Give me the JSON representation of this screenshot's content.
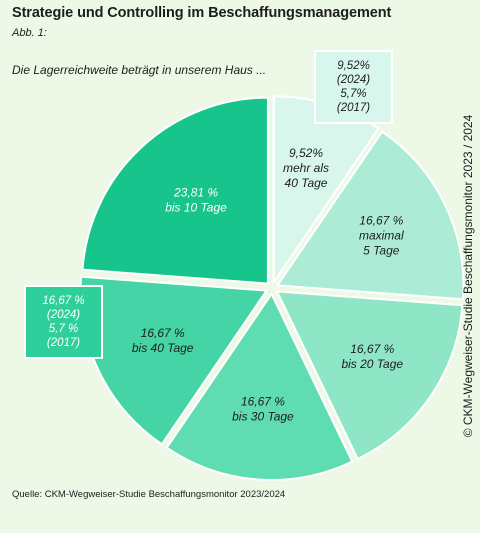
{
  "header": {
    "title": "Strategie und Controlling im Beschaffungsmanagement",
    "figure_label": "Abb. 1:",
    "question": "Die Lagerreichweite beträgt in unserem Haus ..."
  },
  "source": "Quelle: CKM-Wegweiser-Studie Beschaffungsmonitor 2023/2024",
  "side_note": "© CKM-Wegweiser-Studie Beschaffungsmonitor 2023 / 2024",
  "callouts": {
    "top_right": {
      "line1": "9,52%",
      "line2": "(2024)",
      "line3": "5,7%",
      "line4": "(2017)"
    },
    "left": {
      "line1": "16,67 %",
      "line2": "(2024)",
      "line3": "5,7 %",
      "line4": "(2017)"
    }
  },
  "chart_data": {
    "type": "pie",
    "title": "Die Lagerreichweite beträgt in unserem Haus ...",
    "slices": [
      {
        "label": "mehr als 40 Tage",
        "value": 9.52,
        "text": "9,52%",
        "lines": [
          "9,52%",
          "mehr als",
          "40 Tage"
        ],
        "color": "#d9f6ec",
        "text_color": "#1d1d1d"
      },
      {
        "label": "maximal 5 Tage",
        "value": 16.67,
        "text": "16,67 %",
        "lines": [
          "16,67 %",
          "maximal",
          "5 Tage"
        ],
        "color": "#acecd6",
        "text_color": "#1d1d1d"
      },
      {
        "label": "bis 20 Tage",
        "value": 16.67,
        "text": "16,67 %",
        "lines": [
          "16,67 %",
          "bis 20 Tage"
        ],
        "color": "#8ee6c7",
        "text_color": "#1d1d1d"
      },
      {
        "label": "bis 30 Tage",
        "value": 16.67,
        "text": "16,67 %",
        "lines": [
          "16,67 %",
          "bis 30 Tage"
        ],
        "color": "#5fdcb2",
        "text_color": "#1d1d1d"
      },
      {
        "label": "bis 40 Tage",
        "value": 16.67,
        "text": "16,67 %",
        "lines": [
          "16,67 %",
          "bis 40 Tage"
        ],
        "color": "#44d4a6",
        "text_color": "#1d1d1d"
      },
      {
        "label": "bis 10 Tage",
        "value": 23.81,
        "text": "23,81 %",
        "lines": [
          "23,81 %",
          "bis 10 Tage"
        ],
        "color": "#16c48c",
        "text_color": "#ffffff"
      }
    ]
  }
}
